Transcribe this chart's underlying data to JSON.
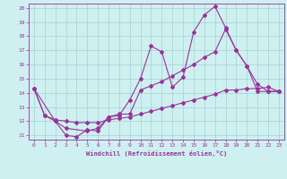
{
  "xlabel": "Windchill (Refroidissement éolien,°C)",
  "xlim": [
    -0.5,
    23.5
  ],
  "ylim": [
    10.7,
    20.3
  ],
  "xticks": [
    0,
    1,
    2,
    3,
    4,
    5,
    6,
    7,
    8,
    9,
    10,
    11,
    12,
    13,
    14,
    15,
    16,
    17,
    18,
    19,
    20,
    21,
    22,
    23
  ],
  "yticks": [
    11,
    12,
    13,
    14,
    15,
    16,
    17,
    18,
    19,
    20
  ],
  "bg_color": "#cff0f0",
  "line_color": "#993399",
  "line1_x": [
    0,
    1,
    2,
    3,
    4,
    5,
    6,
    7,
    8,
    9,
    10,
    11,
    12,
    13,
    14,
    15,
    16,
    17,
    18,
    19,
    20,
    21,
    22,
    23
  ],
  "line1_y": [
    14.3,
    12.4,
    12.0,
    11.0,
    10.9,
    11.4,
    11.3,
    12.3,
    12.4,
    13.5,
    15.0,
    17.3,
    16.9,
    14.4,
    15.1,
    18.3,
    19.5,
    20.1,
    18.6,
    17.0,
    15.9,
    14.1,
    14.1,
    14.1
  ],
  "line2_x": [
    0,
    2,
    3,
    5,
    6,
    7,
    8,
    9,
    10,
    11,
    12,
    13,
    14,
    15,
    16,
    17,
    18,
    19,
    20,
    21,
    22,
    23
  ],
  "line2_y": [
    14.3,
    12.0,
    11.5,
    11.3,
    11.5,
    12.3,
    12.5,
    12.5,
    14.2,
    14.5,
    14.8,
    15.2,
    15.6,
    16.0,
    16.5,
    16.9,
    18.5,
    17.0,
    15.9,
    14.6,
    14.1,
    14.1
  ],
  "line3_x": [
    0,
    1,
    2,
    3,
    4,
    5,
    6,
    7,
    8,
    9,
    10,
    11,
    12,
    13,
    14,
    15,
    16,
    17,
    18,
    19,
    20,
    21,
    22,
    23
  ],
  "line3_y": [
    14.3,
    12.4,
    12.1,
    12.0,
    11.9,
    11.9,
    11.9,
    12.1,
    12.2,
    12.3,
    12.5,
    12.7,
    12.9,
    13.1,
    13.3,
    13.5,
    13.7,
    13.9,
    14.2,
    14.2,
    14.3,
    14.3,
    14.4,
    14.1
  ]
}
